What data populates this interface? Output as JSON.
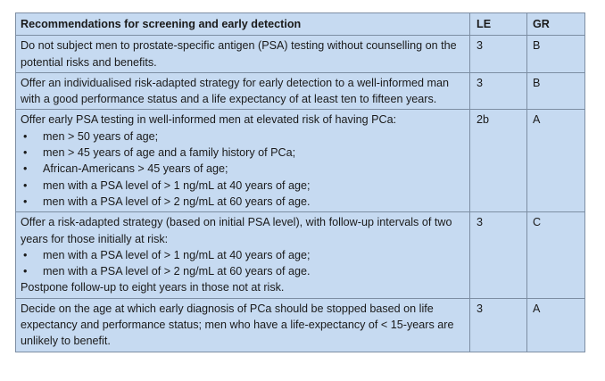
{
  "table": {
    "headers": {
      "recommendation": "Recommendations for screening and early detection",
      "le": "LE",
      "gr": "GR"
    },
    "bullet_glyph": "•",
    "rows": [
      {
        "text": "Do not subject men to prostate-specific antigen (PSA) testing without counselling on the potential risks and benefits.",
        "bullets": [],
        "after": "",
        "le": "3",
        "gr": "B"
      },
      {
        "text": "Offer an individualised risk-adapted strategy for early detection to a well-informed man with a good performance status and a life expectancy of at least ten to fifteen years.",
        "bullets": [],
        "after": "",
        "le": "3",
        "gr": "B"
      },
      {
        "text": "Offer early PSA testing in well-informed men at elevated risk of having PCa:",
        "bullets": [
          "men > 50 years of age;",
          "men > 45 years of age and a family history of PCa;",
          "African-Americans > 45 years of age;",
          "men with a PSA level of > 1 ng/mL at 40 years of age;",
          "men with a PSA level of > 2 ng/mL at 60 years of age."
        ],
        "after": "",
        "le": "2b",
        "gr": "A"
      },
      {
        "text": "Offer a risk-adapted strategy (based on initial PSA level), with follow-up intervals of two years for those initially at risk:",
        "bullets": [
          "men with a PSA level of > 1 ng/mL at 40 years of age;",
          "men with a PSA level of > 2 ng/mL at 60 years of age."
        ],
        "after": "Postpone follow-up to eight years in those not at risk.",
        "le": "3",
        "gr": "C"
      },
      {
        "text": "Decide on the age at which early diagnosis of PCa should be stopped based on life expectancy and performance status; men who have a life-expectancy of < 15-years are unlikely to benefit.",
        "bullets": [],
        "after": "",
        "le": "3",
        "gr": "A"
      }
    ]
  }
}
